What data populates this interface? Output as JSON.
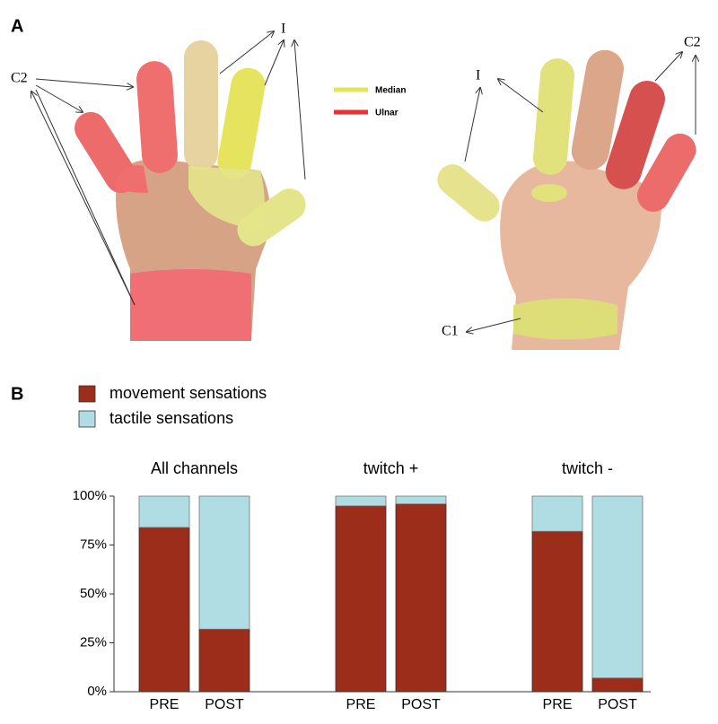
{
  "panel_a": {
    "letter": "A",
    "left_labels": [
      "C2",
      "I"
    ],
    "legend": [
      "Median",
      "Ulnar"
    ],
    "right_labels": [
      "I",
      "C2",
      "C1"
    ]
  },
  "chart_data": {
    "type": "stacked_bar",
    "letter": "B",
    "categories": [
      "PRE",
      "POST",
      "PRE",
      "POST",
      "PRE",
      "POST"
    ],
    "group_labels": [
      "All channels",
      "twitch +",
      "twitch -"
    ],
    "series": [
      {
        "name": "movement sensations",
        "color": "#9b2d1a",
        "values": [
          84,
          32,
          95,
          96,
          82,
          7
        ]
      },
      {
        "name": "tactile sensations",
        "color": "#b0dde4",
        "values": [
          16,
          68,
          5,
          4,
          18,
          93
        ]
      }
    ],
    "ylim": [
      0,
      100
    ],
    "yticks": [
      {
        "value": 0,
        "label": "0%"
      },
      {
        "value": 25,
        "label": "25%"
      },
      {
        "value": 50,
        "label": "50%"
      },
      {
        "value": 75,
        "label": "75%"
      },
      {
        "value": 100,
        "label": "100%"
      }
    ]
  }
}
